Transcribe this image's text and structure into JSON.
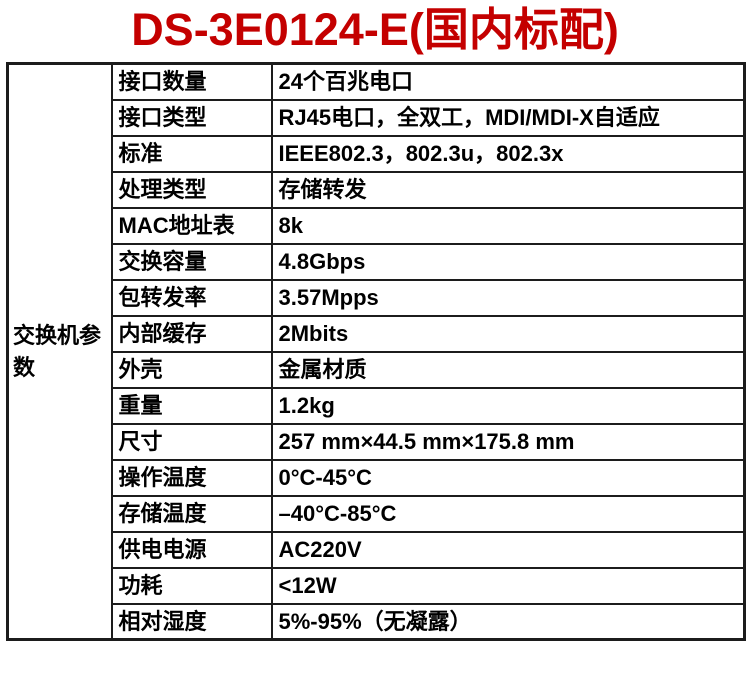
{
  "title": "DS-3E0124-E(国内标配)",
  "table": {
    "group_label": "交换机参数",
    "rows": [
      {
        "label": "接口数量",
        "value": "24个百兆电口"
      },
      {
        "label": "接口类型",
        "value": "RJ45电口，全双工，MDI/MDI-X自适应"
      },
      {
        "label": "标准",
        "value": "IEEE802.3，802.3u，802.3x"
      },
      {
        "label": "处理类型",
        "value": "存储转发"
      },
      {
        "label": "MAC地址表",
        "value": "8k"
      },
      {
        "label": "交换容量",
        "value": "4.8Gbps"
      },
      {
        "label": "包转发率",
        "value": "3.57Mpps"
      },
      {
        "label": "内部缓存",
        "value": "2Mbits"
      },
      {
        "label": "外壳",
        "value": "金属材质"
      },
      {
        "label": "重量",
        "value": "1.2kg"
      },
      {
        "label": "尺寸",
        "value": "257 mm×44.5 mm×175.8 mm"
      },
      {
        "label": "操作温度",
        "value": "0°C-45°C"
      },
      {
        "label": "存储温度",
        "value": "–40°C-85°C"
      },
      {
        "label": "供电电源",
        "value": "AC220V"
      },
      {
        "label": "功耗",
        "value": "<12W"
      },
      {
        "label": "相对湿度",
        "value": "5%-95%（无凝露）"
      }
    ]
  },
  "colors": {
    "title": "#c40000",
    "border": "#1c1c1c",
    "text": "#000000",
    "background": "#ffffff"
  }
}
